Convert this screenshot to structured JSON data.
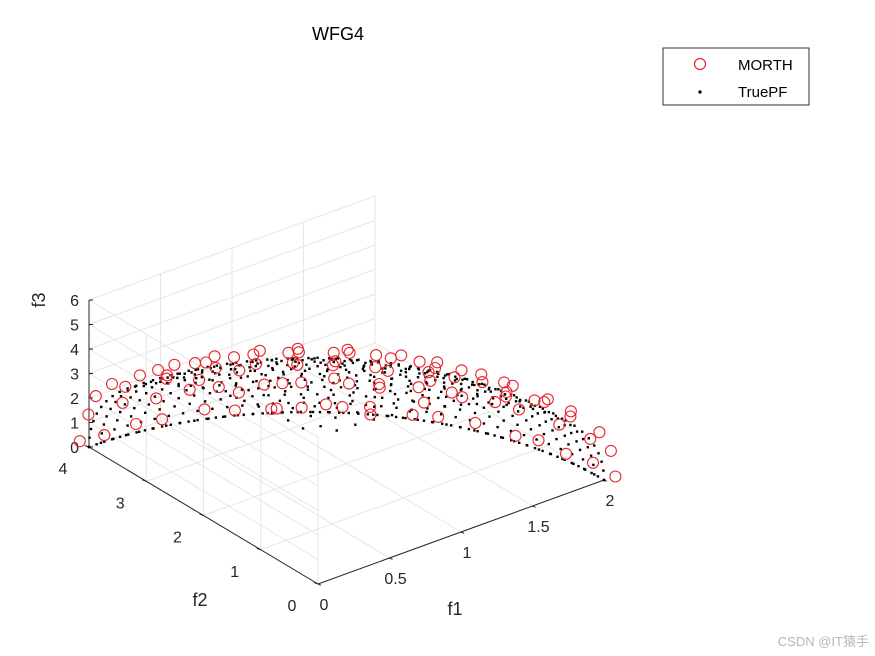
{
  "chart_data": {
    "type": "scatter3d",
    "title": "WFG4",
    "xlabel": "f1",
    "ylabel": "f2",
    "zlabel": "f3",
    "xlim": [
      0,
      2
    ],
    "ylim": [
      0,
      4
    ],
    "zlim": [
      0,
      6
    ],
    "xticks": [
      "0",
      "0.5",
      "1",
      "1.5",
      "2"
    ],
    "yticks": [
      "0",
      "1",
      "2",
      "3",
      "4"
    ],
    "zticks": [
      "0",
      "1",
      "2",
      "3",
      "4",
      "5",
      "6"
    ],
    "grid": true,
    "legend_position": "top-right",
    "series": [
      {
        "name": "MORTH",
        "marker": "open-circle",
        "color": "#e8262b",
        "front": "ellipsoid f1^2/4 + f2^2/16 + f3^2/36 = 1, roughly 160 solutions"
      },
      {
        "name": "TruePF",
        "marker": "dot",
        "color": "#000000",
        "front": "ellipsoid f1^2/4 + f2^2/16 + f3^2/36 = 1, dense grid"
      }
    ],
    "front_shape": {
      "a": 2,
      "b": 4,
      "c": 6
    }
  },
  "watermark": "CSDN @IT猿手"
}
